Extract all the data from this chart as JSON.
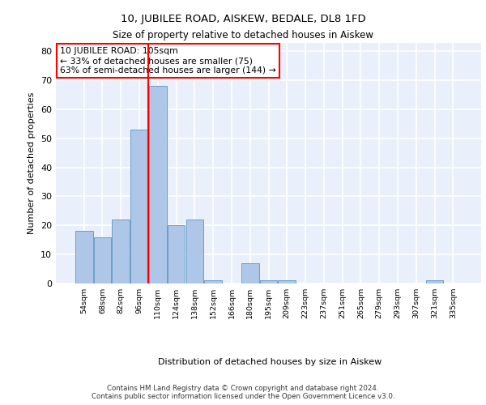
{
  "title1": "10, JUBILEE ROAD, AISKEW, BEDALE, DL8 1FD",
  "title2": "Size of property relative to detached houses in Aiskew",
  "xlabel": "Distribution of detached houses by size in Aiskew",
  "ylabel": "Number of detached properties",
  "categories": [
    "54sqm",
    "68sqm",
    "82sqm",
    "96sqm",
    "110sqm",
    "124sqm",
    "138sqm",
    "152sqm",
    "166sqm",
    "180sqm",
    "195sqm",
    "209sqm",
    "223sqm",
    "237sqm",
    "251sqm",
    "265sqm",
    "279sqm",
    "293sqm",
    "307sqm",
    "321sqm",
    "335sqm"
  ],
  "values": [
    18,
    16,
    22,
    53,
    68,
    20,
    22,
    1,
    0,
    7,
    1,
    1,
    0,
    0,
    0,
    0,
    0,
    0,
    0,
    1,
    0
  ],
  "bar_color": "#aec6e8",
  "bar_edge_color": "#6b9fc8",
  "vline_color": "red",
  "vline_x_index": 4,
  "annotation_text": "10 JUBILEE ROAD: 105sqm\n← 33% of detached houses are smaller (75)\n63% of semi-detached houses are larger (144) →",
  "annotation_box_color": "white",
  "annotation_box_edge_color": "red",
  "ylim": [
    0,
    83
  ],
  "yticks": [
    0,
    10,
    20,
    30,
    40,
    50,
    60,
    70,
    80
  ],
  "background_color": "#eaf0fb",
  "grid_color": "white",
  "footer": "Contains HM Land Registry data © Crown copyright and database right 2024.\nContains public sector information licensed under the Open Government Licence v3.0."
}
